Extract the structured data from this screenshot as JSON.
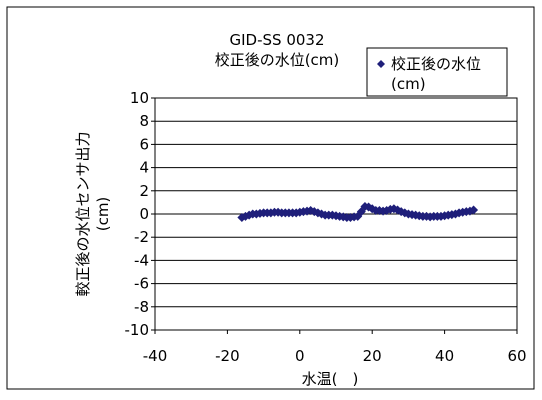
{
  "chart_data": {
    "type": "scatter",
    "title": "GID-SS 0032",
    "subtitle": "校正後の水位(cm)",
    "xlabel": "水温(　)",
    "ylabel": "較正後の水位センサ出力",
    "ylabel_unit": "(cm)",
    "xlim": [
      -40,
      60
    ],
    "ylim": [
      -10,
      10
    ],
    "x_ticks": [
      -40,
      -20,
      0,
      20,
      40,
      60
    ],
    "y_ticks": [
      10,
      8,
      6,
      4,
      2,
      0,
      -2,
      -4,
      -6,
      -8,
      -10
    ],
    "grid": true,
    "legend_position": "top-right",
    "series": [
      {
        "name": "校正後の水位 (cm)",
        "color": "#1f1f7a",
        "marker": "diamond",
        "points": [
          [
            -16,
            -0.3
          ],
          [
            -15,
            -0.2
          ],
          [
            -14,
            -0.1
          ],
          [
            -13,
            0.0
          ],
          [
            -12,
            0.0
          ],
          [
            -11,
            0.05
          ],
          [
            -10,
            0.1
          ],
          [
            -9,
            0.1
          ],
          [
            -8,
            0.1
          ],
          [
            -7,
            0.15
          ],
          [
            -6,
            0.15
          ],
          [
            -5,
            0.1
          ],
          [
            -4,
            0.1
          ],
          [
            -3,
            0.1
          ],
          [
            -2,
            0.1
          ],
          [
            -1,
            0.1
          ],
          [
            0,
            0.15
          ],
          [
            1,
            0.2
          ],
          [
            2,
            0.25
          ],
          [
            3,
            0.3
          ],
          [
            4,
            0.2
          ],
          [
            5,
            0.1
          ],
          [
            6,
            0.0
          ],
          [
            7,
            -0.1
          ],
          [
            8,
            -0.1
          ],
          [
            9,
            -0.1
          ],
          [
            10,
            -0.15
          ],
          [
            11,
            -0.2
          ],
          [
            12,
            -0.25
          ],
          [
            13,
            -0.3
          ],
          [
            14,
            -0.3
          ],
          [
            15,
            -0.25
          ],
          [
            16,
            -0.2
          ],
          [
            17,
            0.2
          ],
          [
            18,
            0.65
          ],
          [
            19,
            0.6
          ],
          [
            20,
            0.45
          ],
          [
            21,
            0.3
          ],
          [
            22,
            0.3
          ],
          [
            23,
            0.25
          ],
          [
            24,
            0.3
          ],
          [
            25,
            0.4
          ],
          [
            26,
            0.45
          ],
          [
            27,
            0.35
          ],
          [
            28,
            0.2
          ],
          [
            29,
            0.1
          ],
          [
            30,
            0.0
          ],
          [
            31,
            -0.05
          ],
          [
            32,
            -0.1
          ],
          [
            33,
            -0.15
          ],
          [
            34,
            -0.2
          ],
          [
            35,
            -0.2
          ],
          [
            36,
            -0.25
          ],
          [
            37,
            -0.2
          ],
          [
            38,
            -0.2
          ],
          [
            39,
            -0.2
          ],
          [
            40,
            -0.15
          ],
          [
            41,
            -0.1
          ],
          [
            42,
            -0.05
          ],
          [
            43,
            0.0
          ],
          [
            44,
            0.1
          ],
          [
            45,
            0.15
          ],
          [
            46,
            0.2
          ],
          [
            47,
            0.25
          ],
          [
            48,
            0.35
          ]
        ]
      }
    ]
  }
}
